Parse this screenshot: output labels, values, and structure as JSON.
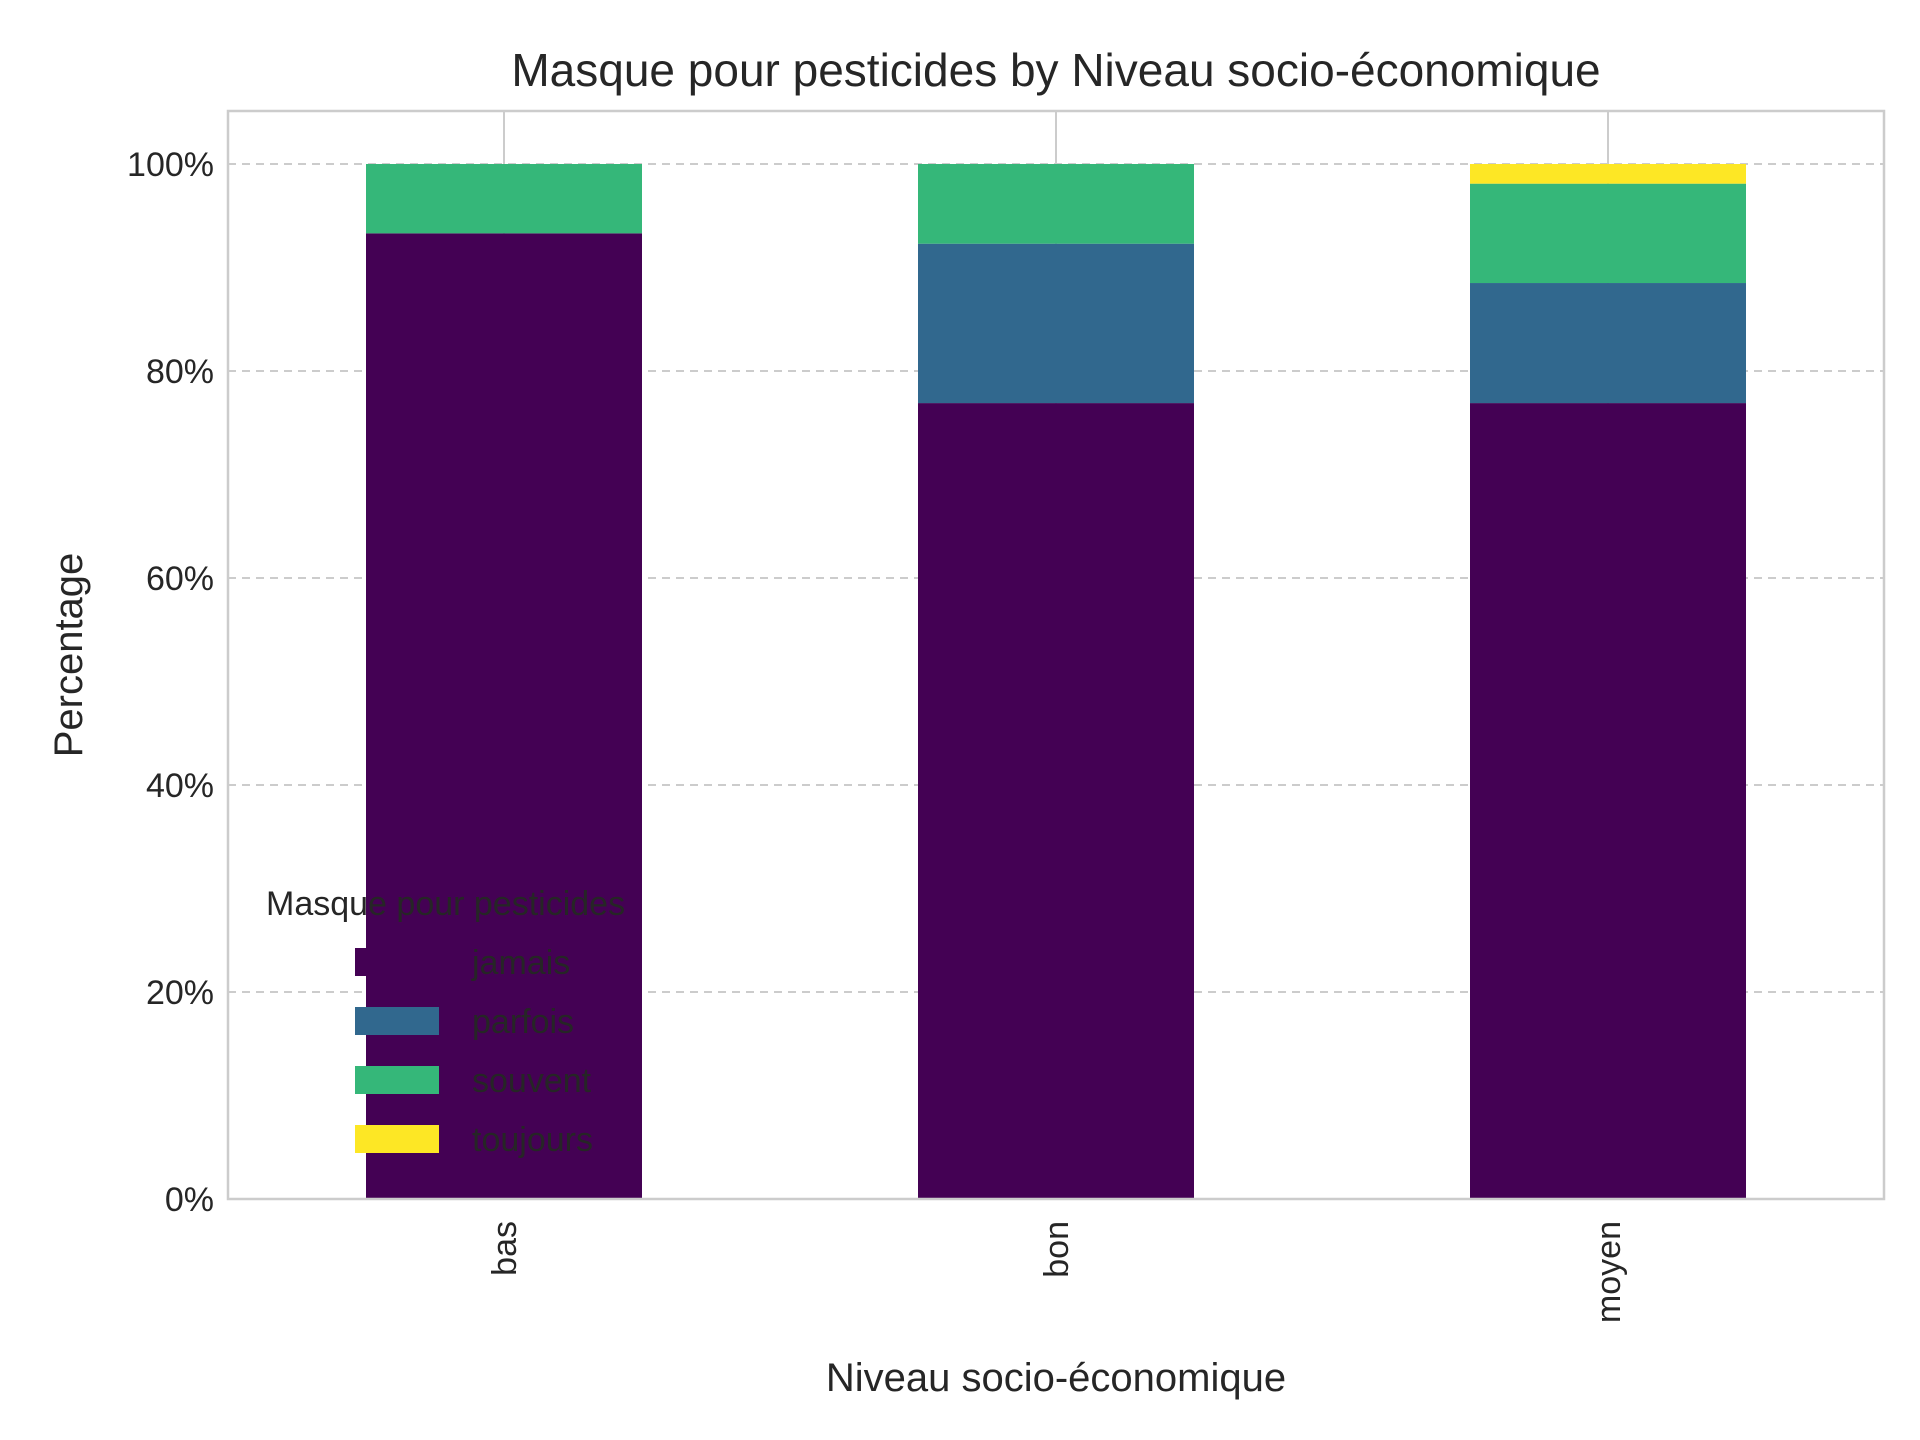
{
  "chart_data": {
    "type": "bar",
    "stacked": true,
    "title": "Masque pour pesticides by Niveau socio-économique",
    "xlabel": "Niveau socio-économique",
    "ylabel": "Percentage",
    "categories": [
      "bas",
      "bon",
      "moyen"
    ],
    "series": [
      {
        "name": "jamais",
        "color": "#440154",
        "values": [
          93.3,
          76.9,
          76.9
        ]
      },
      {
        "name": "parfois",
        "color": "#31688e",
        "values": [
          0.0,
          15.4,
          11.6
        ]
      },
      {
        "name": "souvent",
        "color": "#35b779",
        "values": [
          6.7,
          7.7,
          9.6
        ]
      },
      {
        "name": "toujours",
        "color": "#fde725",
        "values": [
          0.0,
          0.0,
          1.9
        ]
      }
    ],
    "ylim": [
      0,
      105
    ],
    "yticks": [
      0,
      20,
      40,
      60,
      80,
      100
    ],
    "ytick_labels": [
      "0%",
      "20%",
      "40%",
      "60%",
      "80%",
      "100%"
    ],
    "y_grid": true,
    "x_tick_rotation": "vertical",
    "legend": {
      "title": "Masque pour pesticides",
      "placement": "lower-left"
    }
  }
}
